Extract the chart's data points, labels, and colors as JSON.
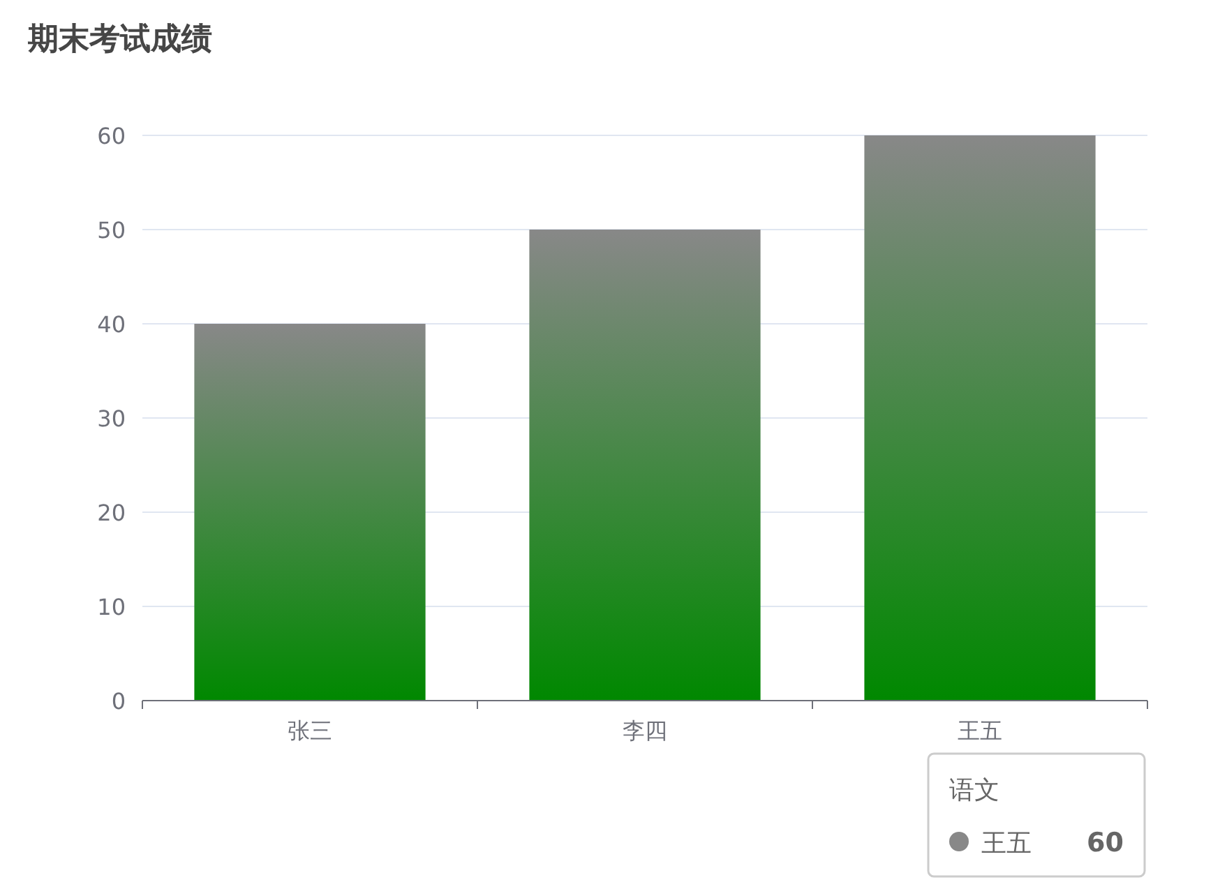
{
  "chart_data": {
    "type": "bar",
    "title": "期末考试成绩",
    "categories": [
      "张三",
      "李四",
      "王五"
    ],
    "series": [
      {
        "name": "语文",
        "color": "#008800",
        "values": [
          40,
          50,
          60
        ]
      }
    ],
    "ylim": [
      0,
      60
    ],
    "yticks": [
      0,
      10,
      20,
      30,
      40,
      50,
      60
    ],
    "grid": "y",
    "legend": "bottom right",
    "annotations": [
      "王五",
      "60"
    ]
  }
}
